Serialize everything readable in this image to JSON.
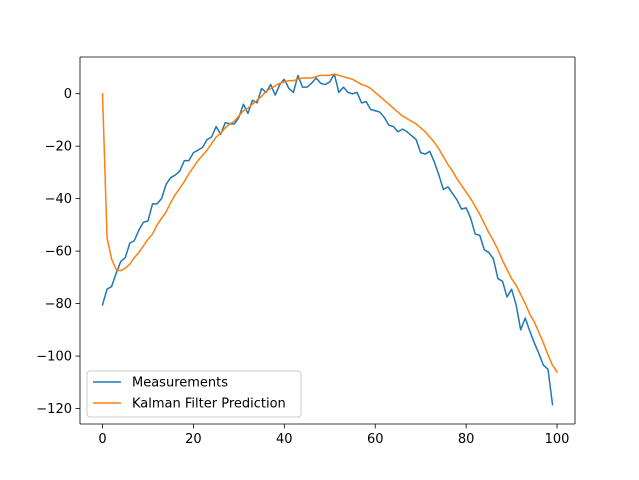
{
  "chart_data": {
    "type": "line",
    "title": "",
    "xlabel": "",
    "ylabel": "",
    "xlim": [
      -4.95,
      103.95
    ],
    "ylim": [
      -125.9,
      14.0
    ],
    "x_ticks": [
      0,
      20,
      40,
      60,
      80,
      100
    ],
    "y_ticks": [
      0,
      -20,
      -40,
      -60,
      -80,
      -100,
      -120
    ],
    "grid": false,
    "legend_position": "lower-left",
    "series": [
      {
        "name": "Measurements",
        "color": "#1f77b4",
        "values": [
          -80.5,
          -74.5,
          -73.5,
          -68.5,
          -64.0,
          -62.5,
          -57.0,
          -56.0,
          -52.0,
          -49.0,
          -48.5,
          -42.0,
          -42.0,
          -40.0,
          -34.5,
          -32.0,
          -31.0,
          -29.5,
          -25.5,
          -25.5,
          -22.5,
          -21.5,
          -20.5,
          -17.5,
          -16.5,
          -12.5,
          -15.5,
          -11.0,
          -11.5,
          -11.5,
          -9.0,
          -4.0,
          -7.5,
          -2.5,
          -3.5,
          2.0,
          0.5,
          3.5,
          -0.5,
          3.5,
          5.5,
          2.0,
          0.5,
          7.0,
          2.5,
          2.5,
          4.0,
          6.0,
          4.0,
          3.5,
          4.5,
          7.5,
          0.5,
          2.5,
          0.5,
          0.0,
          0.5,
          -3.5,
          -3.0,
          -6.0,
          -6.5,
          -7.0,
          -9.0,
          -12.0,
          -12.5,
          -14.5,
          -13.5,
          -14.5,
          -16.0,
          -17.5,
          -22.5,
          -23.0,
          -22.0,
          -26.0,
          -31.0,
          -36.5,
          -35.5,
          -38.0,
          -40.5,
          -44.0,
          -43.5,
          -47.5,
          -53.5,
          -54.0,
          -59.5,
          -60.5,
          -63.0,
          -70.5,
          -71.5,
          -77.5,
          -74.5,
          -80.5,
          -90.0,
          -85.5,
          -90.5,
          -95.0,
          -99.0,
          -103.5,
          -105.0,
          -118.5
        ]
      },
      {
        "name": "Kalman Filter Prediction",
        "color": "#ff7f0e",
        "values": [
          0.0,
          -55.0,
          -63.0,
          -67.0,
          -67.5,
          -66.5,
          -65.0,
          -62.5,
          -60.5,
          -58.0,
          -55.5,
          -53.5,
          -50.0,
          -47.5,
          -45.0,
          -41.5,
          -38.5,
          -36.0,
          -33.5,
          -30.5,
          -28.0,
          -25.5,
          -23.5,
          -21.5,
          -19.0,
          -16.5,
          -15.0,
          -13.0,
          -11.5,
          -10.5,
          -8.5,
          -6.5,
          -5.5,
          -4.0,
          -2.5,
          -1.0,
          1.0,
          2.0,
          3.0,
          4.0,
          4.5,
          5.0,
          5.0,
          5.5,
          6.0,
          6.0,
          6.0,
          6.5,
          7.0,
          7.0,
          7.0,
          7.5,
          7.0,
          6.5,
          6.0,
          5.5,
          4.5,
          3.5,
          3.0,
          2.0,
          0.5,
          -1.0,
          -2.5,
          -4.0,
          -5.5,
          -7.0,
          -8.5,
          -9.5,
          -10.5,
          -11.5,
          -13.0,
          -14.5,
          -16.5,
          -18.5,
          -21.0,
          -24.0,
          -27.0,
          -29.5,
          -32.5,
          -35.0,
          -37.5,
          -40.0,
          -43.0,
          -46.0,
          -49.5,
          -53.0,
          -56.0,
          -59.5,
          -63.5,
          -67.0,
          -70.5,
          -73.0,
          -76.5,
          -80.0,
          -84.0,
          -87.0,
          -91.0,
          -95.0,
          -99.5,
          -103.5,
          -106.0
        ]
      }
    ]
  }
}
